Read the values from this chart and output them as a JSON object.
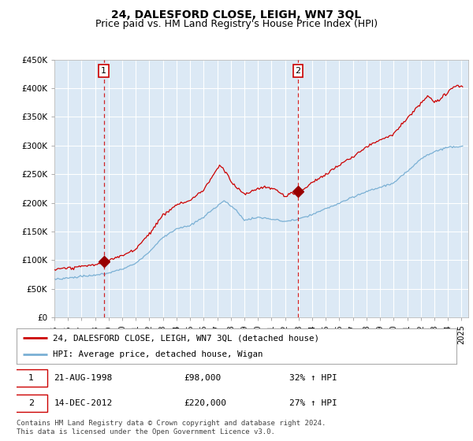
{
  "title": "24, DALESFORD CLOSE, LEIGH, WN7 3QL",
  "subtitle": "Price paid vs. HM Land Registry's House Price Index (HPI)",
  "title_fontsize": 10,
  "subtitle_fontsize": 9,
  "background_color": "#ffffff",
  "plot_bg_color": "#dce9f5",
  "grid_color": "#ffffff",
  "ylabel_ticks": [
    "£0",
    "£50K",
    "£100K",
    "£150K",
    "£200K",
    "£250K",
    "£300K",
    "£350K",
    "£400K",
    "£450K"
  ],
  "ytick_values": [
    0,
    50000,
    100000,
    150000,
    200000,
    250000,
    300000,
    350000,
    400000,
    450000
  ],
  "ylim": [
    0,
    450000
  ],
  "xlim_start": 1995.0,
  "xlim_end": 2025.5,
  "sale1_date_label": "21-AUG-1998",
  "sale1_price": 98000,
  "sale1_pct": "32% ↑ HPI",
  "sale1_x": 1998.64,
  "sale2_date_label": "14-DEC-2012",
  "sale2_price": 220000,
  "sale2_pct": "27% ↑ HPI",
  "sale2_x": 2012.96,
  "red_line_color": "#cc0000",
  "blue_line_color": "#7ab0d4",
  "dashed_line_color": "#cc0000",
  "marker_color": "#990000",
  "legend_label_red": "24, DALESFORD CLOSE, LEIGH, WN7 3QL (detached house)",
  "legend_label_blue": "HPI: Average price, detached house, Wigan",
  "footer_text": "Contains HM Land Registry data © Crown copyright and database right 2024.\nThis data is licensed under the Open Government Licence v3.0.",
  "xtick_years": [
    1995,
    1996,
    1997,
    1998,
    1999,
    2000,
    2001,
    2002,
    2003,
    2004,
    2005,
    2006,
    2007,
    2008,
    2009,
    2010,
    2011,
    2012,
    2013,
    2014,
    2015,
    2016,
    2017,
    2018,
    2019,
    2020,
    2021,
    2022,
    2023,
    2024,
    2025
  ],
  "hpi_keypoints": [
    [
      1995.0,
      67000
    ],
    [
      1996.0,
      69000
    ],
    [
      1997.0,
      72000
    ],
    [
      1998.0,
      74000
    ],
    [
      1999.0,
      78000
    ],
    [
      2000.0,
      85000
    ],
    [
      2001.0,
      95000
    ],
    [
      2002.0,
      115000
    ],
    [
      2003.0,
      140000
    ],
    [
      2004.0,
      155000
    ],
    [
      2005.0,
      160000
    ],
    [
      2006.0,
      175000
    ],
    [
      2007.5,
      205000
    ],
    [
      2008.5,
      185000
    ],
    [
      2009.0,
      170000
    ],
    [
      2010.0,
      175000
    ],
    [
      2011.0,
      172000
    ],
    [
      2012.0,
      168000
    ],
    [
      2013.0,
      172000
    ],
    [
      2014.0,
      180000
    ],
    [
      2015.0,
      190000
    ],
    [
      2016.0,
      200000
    ],
    [
      2017.0,
      210000
    ],
    [
      2018.0,
      220000
    ],
    [
      2019.0,
      228000
    ],
    [
      2020.0,
      235000
    ],
    [
      2021.0,
      255000
    ],
    [
      2022.0,
      278000
    ],
    [
      2023.0,
      290000
    ],
    [
      2024.0,
      298000
    ],
    [
      2025.0,
      300000
    ]
  ],
  "red_keypoints": [
    [
      1995.0,
      84000
    ],
    [
      1996.0,
      86000
    ],
    [
      1997.0,
      90000
    ],
    [
      1998.0,
      93000
    ],
    [
      1998.64,
      98000
    ],
    [
      1999.0,
      100000
    ],
    [
      2000.0,
      109000
    ],
    [
      2001.0,
      122000
    ],
    [
      2002.0,
      148000
    ],
    [
      2003.0,
      180000
    ],
    [
      2004.0,
      199000
    ],
    [
      2005.0,
      206000
    ],
    [
      2006.0,
      225000
    ],
    [
      2007.2,
      268000
    ],
    [
      2007.8,
      250000
    ],
    [
      2008.0,
      240000
    ],
    [
      2008.5,
      228000
    ],
    [
      2009.0,
      218000
    ],
    [
      2009.5,
      222000
    ],
    [
      2010.0,
      228000
    ],
    [
      2010.5,
      232000
    ],
    [
      2011.0,
      228000
    ],
    [
      2011.5,
      225000
    ],
    [
      2012.0,
      215000
    ],
    [
      2012.5,
      220000
    ],
    [
      2012.96,
      220000
    ],
    [
      2013.0,
      222000
    ],
    [
      2013.5,
      228000
    ],
    [
      2014.0,
      238000
    ],
    [
      2015.0,
      252000
    ],
    [
      2016.0,
      268000
    ],
    [
      2017.0,
      282000
    ],
    [
      2018.0,
      300000
    ],
    [
      2019.0,
      312000
    ],
    [
      2020.0,
      322000
    ],
    [
      2021.0,
      350000
    ],
    [
      2022.0,
      375000
    ],
    [
      2022.5,
      390000
    ],
    [
      2023.0,
      378000
    ],
    [
      2023.5,
      385000
    ],
    [
      2024.0,
      395000
    ],
    [
      2024.5,
      408000
    ],
    [
      2025.0,
      405000
    ]
  ]
}
